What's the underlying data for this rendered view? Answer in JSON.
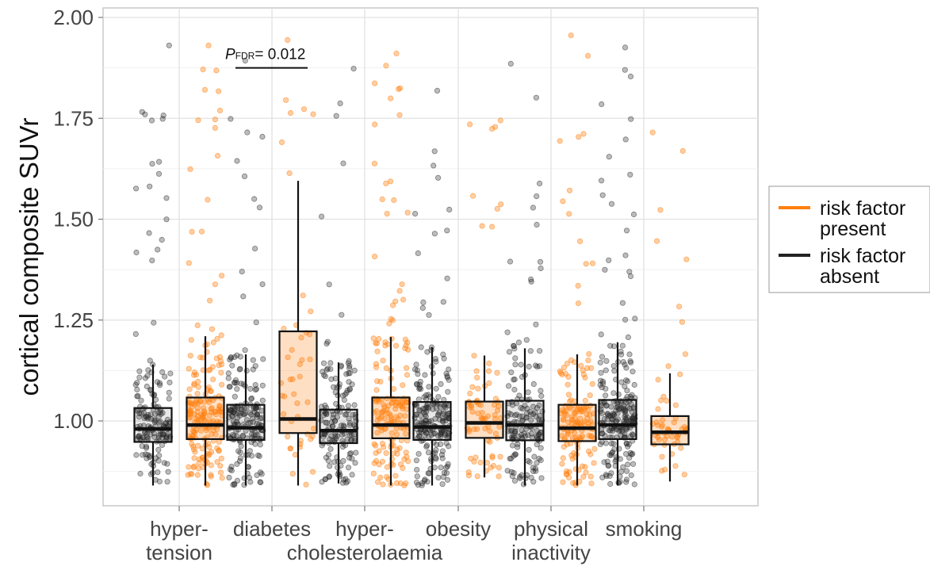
{
  "chart_data": {
    "type": "box",
    "ylabel": "cortical composite SUVr",
    "xlabel": "",
    "ylim": [
      0.82,
      2.02
    ],
    "yticks": [
      "1.00",
      "1.25",
      "1.50",
      "1.75",
      "2.00"
    ],
    "grid": true,
    "legend_position": "right",
    "categories": [
      "hyper-\ntension",
      "diabetes",
      "hyper-\ncholesterolaemia",
      "obesity",
      "physical\ninactivity",
      "smoking"
    ],
    "series": [
      {
        "name": "risk factor\npresent",
        "color": "#ff7f0e",
        "boxes": [
          {
            "whisker_low": 0.84,
            "q1": 0.955,
            "median": 0.99,
            "q3": 1.058,
            "whisker_high": 1.21
          },
          {
            "whisker_low": 0.84,
            "q1": 0.97,
            "median": 1.005,
            "q3": 1.222,
            "whisker_high": 1.595
          },
          {
            "whisker_low": 0.84,
            "q1": 0.957,
            "median": 0.99,
            "q3": 1.058,
            "whisker_high": 1.208
          },
          {
            "whisker_low": 0.86,
            "q1": 0.958,
            "median": 0.995,
            "q3": 1.048,
            "whisker_high": 1.162
          },
          {
            "whisker_low": 0.84,
            "q1": 0.95,
            "median": 0.982,
            "q3": 1.04,
            "whisker_high": 1.165
          },
          {
            "whisker_low": 0.85,
            "q1": 0.942,
            "median": 0.972,
            "q3": 1.012,
            "whisker_high": 1.118
          }
        ]
      },
      {
        "name": "risk factor\nabsent",
        "color": "#222222",
        "boxes": [
          {
            "whisker_low": 0.84,
            "q1": 0.948,
            "median": 0.98,
            "q3": 1.032,
            "whisker_high": 1.14
          },
          {
            "whisker_low": 0.84,
            "q1": 0.953,
            "median": 0.983,
            "q3": 1.04,
            "whisker_high": 1.165
          },
          {
            "whisker_low": 0.845,
            "q1": 0.945,
            "median": 0.976,
            "q3": 1.028,
            "whisker_high": 1.145
          },
          {
            "whisker_low": 0.84,
            "q1": 0.953,
            "median": 0.985,
            "q3": 1.047,
            "whisker_high": 1.183
          },
          {
            "whisker_low": 0.84,
            "q1": 0.952,
            "median": 0.99,
            "q3": 1.05,
            "whisker_high": 1.18
          },
          {
            "whisker_low": 0.84,
            "q1": 0.955,
            "median": 0.99,
            "q3": 1.052,
            "whisker_high": 1.195
          }
        ]
      }
    ],
    "annotations": [
      {
        "text_italic": "P",
        "text_sub": "FDR",
        "text": "= 0.012",
        "category_index": 1,
        "y": 1.875
      }
    ]
  }
}
